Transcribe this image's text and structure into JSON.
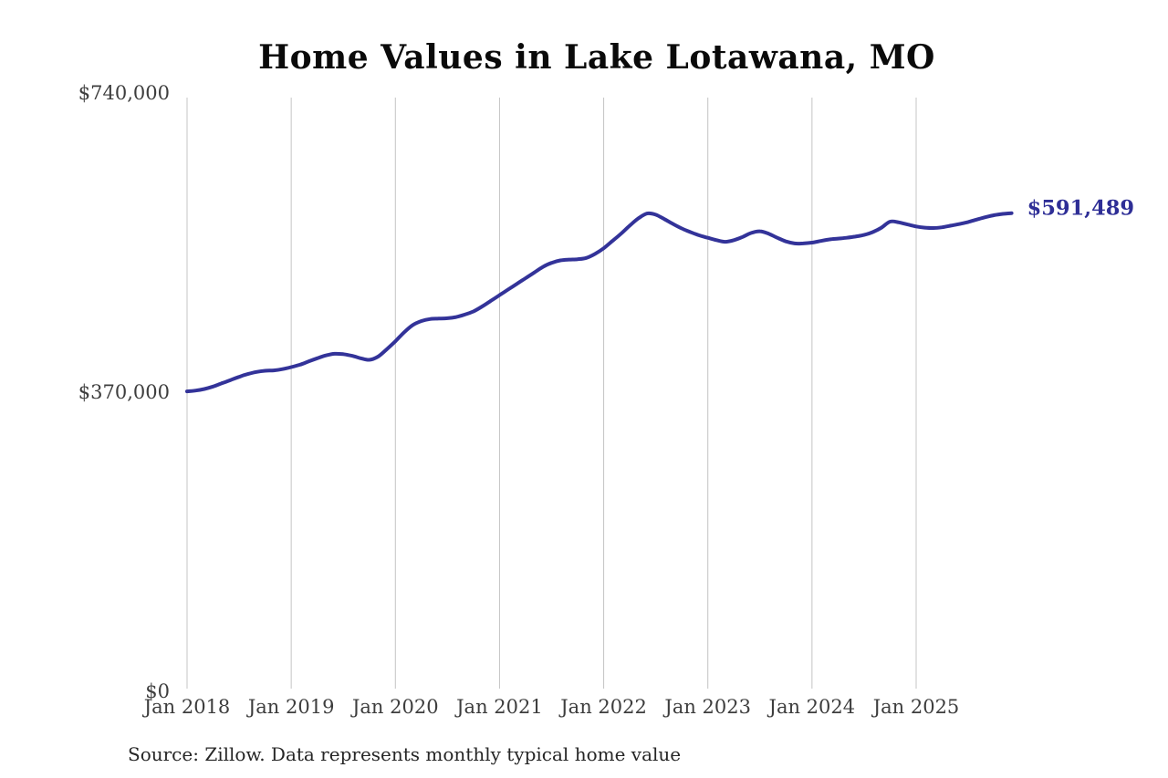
{
  "chart": {
    "title": "Home Values in Lake Lotawana, MO",
    "end_label": "$591,489",
    "source": "Source: Zillow. Data represents monthly typical home value",
    "colors": {
      "line": "#333399",
      "end_label": "#2e2e96",
      "gridline": "#c4c4c4",
      "tick_text": "#3d3d3d",
      "title_text": "#0a0a0a",
      "source_text": "#262626"
    }
  },
  "chart_data": {
    "type": "line",
    "title": "Home Values in Lake Lotawana, MO",
    "series_name": "Monthly typical home value (Zillow)",
    "x_start": "2018-01",
    "x_end": "2025-12",
    "frequency": "monthly",
    "values": [
      371000,
      372000,
      374000,
      377000,
      381000,
      385000,
      389000,
      392500,
      395000,
      396500,
      397000,
      398500,
      401000,
      404000,
      408000,
      412000,
      415500,
      417500,
      417000,
      415000,
      412000,
      410000,
      414000,
      423000,
      433000,
      444000,
      453000,
      458000,
      460500,
      461000,
      461500,
      463000,
      466000,
      470000,
      476000,
      483000,
      490000,
      497000,
      504000,
      511000,
      518000,
      525000,
      530000,
      533000,
      534000,
      534500,
      536000,
      541000,
      548000,
      557000,
      566000,
      576000,
      585000,
      591000,
      589500,
      584000,
      578000,
      572500,
      568000,
      564000,
      561000,
      558000,
      556000,
      558000,
      562000,
      567000,
      569000,
      566000,
      561000,
      556500,
      554000,
      554000,
      555000,
      557000,
      559000,
      560000,
      561000,
      562500,
      564500,
      568000,
      573500,
      581000,
      580000,
      577500,
      575000,
      573500,
      573000,
      574000,
      576000,
      578000,
      580500,
      583500,
      586500,
      589000,
      590500,
      591489
    ],
    "latest": {
      "label": "$591,489",
      "value": 591489
    },
    "ylim": [
      0,
      740000
    ],
    "y_ticks": [
      {
        "label": "$740,000",
        "value": 740000
      },
      {
        "label": "$370,000",
        "value": 370000
      },
      {
        "label": "$0",
        "value": 0
      }
    ],
    "x_ticks": [
      {
        "label": "Jan 2018",
        "month_index": 0
      },
      {
        "label": "Jan 2019",
        "month_index": 12
      },
      {
        "label": "Jan 2020",
        "month_index": 24
      },
      {
        "label": "Jan 2021",
        "month_index": 36
      },
      {
        "label": "Jan 2022",
        "month_index": 48
      },
      {
        "label": "Jan 2023",
        "month_index": 60
      },
      {
        "label": "Jan 2024",
        "month_index": 72
      },
      {
        "label": "Jan 2025",
        "month_index": 84
      }
    ],
    "grid": "vertical-year-lines-only",
    "legend": false,
    "line_color": "#333399",
    "source": "Source: Zillow. Data represents monthly typical home value"
  }
}
